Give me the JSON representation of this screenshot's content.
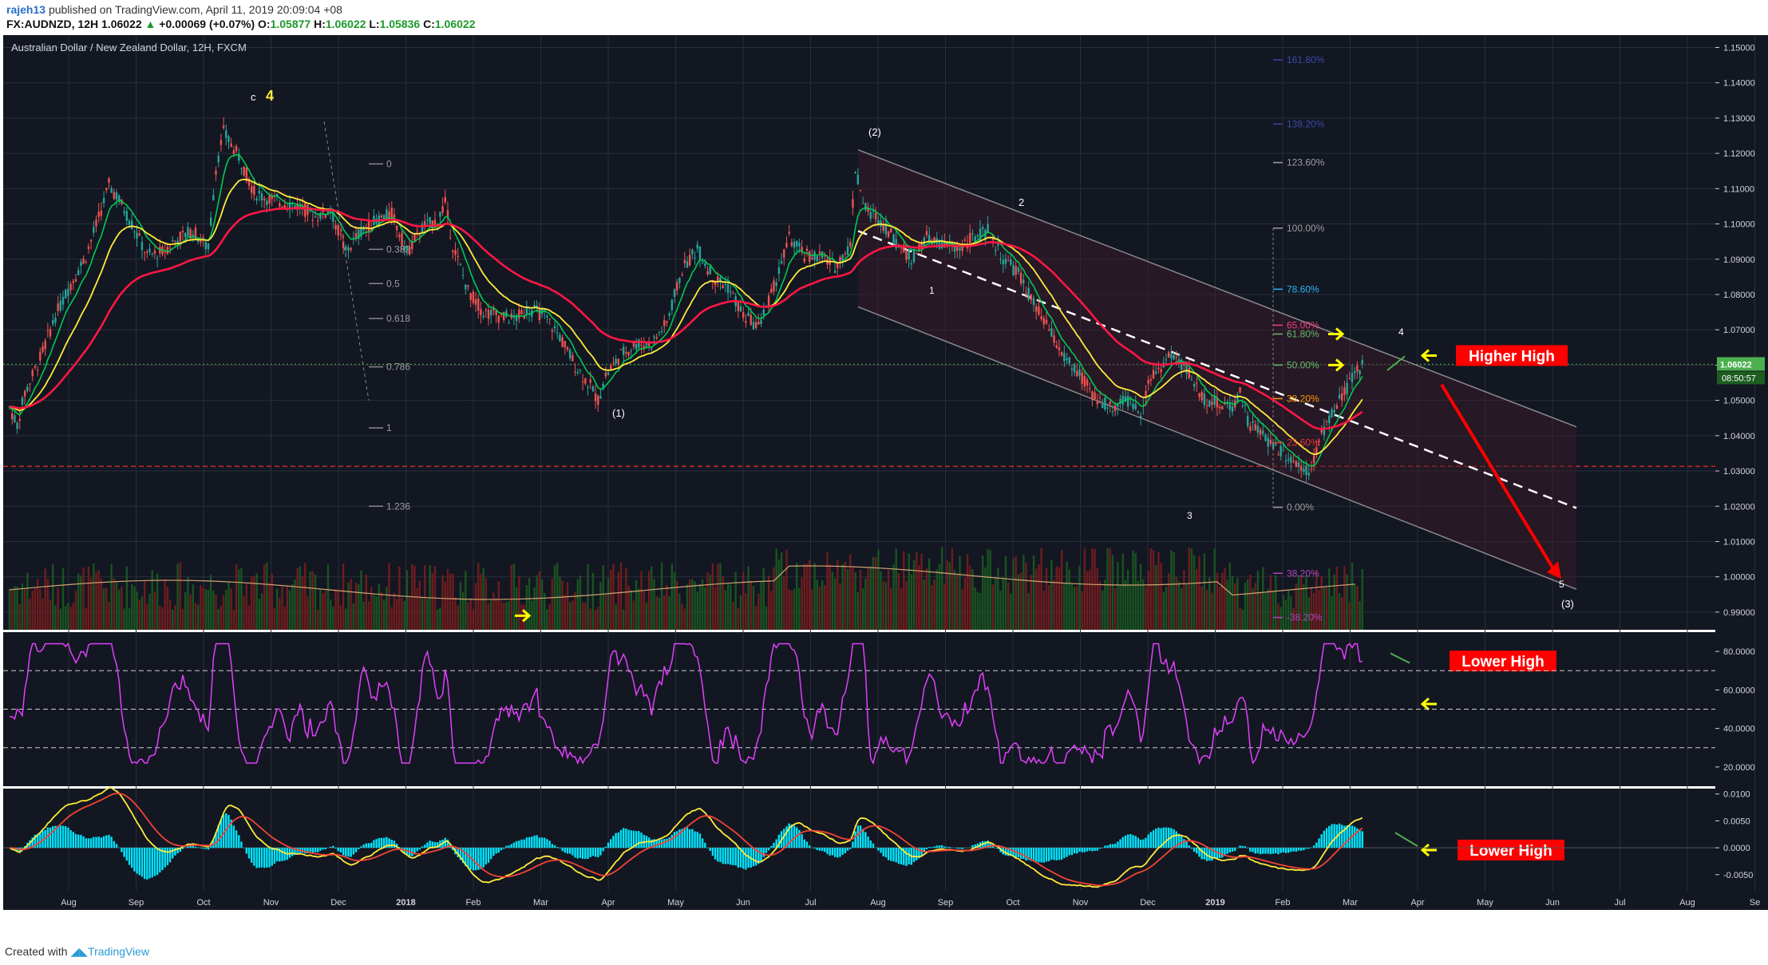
{
  "header": {
    "user": "rajeh13",
    "published": "published on TradingView.com, April 11, 2019 20:09:04 +08",
    "symbol": "FX:AUDNZD, 12H",
    "last": "1.06022",
    "arrow": "▲",
    "change": "+0.00069 (+0.07%)",
    "o_label": "O:",
    "o_value": "1.05877",
    "h_label": "H:",
    "h_value": "1.06022",
    "l_label": "L:",
    "l_value": "1.05836",
    "c_label": "C:",
    "c_value": "1.06022"
  },
  "footer": {
    "created_with": "Created with",
    "brand": "TradingView"
  },
  "colors": {
    "background": "#131722",
    "grid": "#2a2e39",
    "bull": "#26a69a",
    "bear": "#ef5350",
    "ema_fast": "#00c853",
    "ema_mid": "#ffeb3b",
    "ema_slow": "#ff1744",
    "rsi": "#e040fb",
    "macd_hist": "#00e5ff",
    "annotation_red": "#ff0000",
    "arrow_yellow": "#ffff00"
  },
  "chart_data": [
    {
      "type": "line",
      "title": "Australian Dollar / New Zealand Dollar, 12H, FXCM",
      "x_axis": [
        "Aug",
        "Sep",
        "Oct",
        "Nov",
        "Dec",
        "2018",
        "Feb",
        "Mar",
        "Apr",
        "May",
        "Jun",
        "Jul",
        "Aug",
        "Sep",
        "Oct",
        "Nov",
        "Dec",
        "2019",
        "Feb",
        "Mar",
        "Apr",
        "May",
        "Jun",
        "Jul",
        "Aug",
        "Se"
      ],
      "y_axis": [
        "1.15000",
        "1.14000",
        "1.13000",
        "1.12000",
        "1.11000",
        "1.10000",
        "1.09000",
        "1.08000",
        "1.07000",
        "1.06000",
        "1.05000",
        "1.04000",
        "1.03000",
        "1.02000",
        "1.01000",
        "1.00000",
        "0.99000"
      ],
      "ylim": [
        0.985,
        1.1535
      ],
      "price_label": "1.06022",
      "countdown": "08:50:57",
      "price_path": [
        [
          0,
          1.048
        ],
        [
          0.5,
          1.043
        ],
        [
          1,
          1.052
        ],
        [
          2,
          1.062
        ],
        [
          3,
          1.074
        ],
        [
          4,
          1.083
        ],
        [
          5,
          1.091
        ],
        [
          6,
          1.104
        ],
        [
          6.5,
          1.111
        ],
        [
          7,
          1.108
        ],
        [
          8,
          1.1
        ],
        [
          9,
          1.091
        ],
        [
          10,
          1.092
        ],
        [
          11,
          1.096
        ],
        [
          12,
          1.098
        ],
        [
          13,
          1.093
        ],
        [
          13.5,
          1.116
        ],
        [
          14,
          1.126
        ],
        [
          15,
          1.119
        ],
        [
          16,
          1.109
        ],
        [
          17,
          1.107
        ],
        [
          18,
          1.106
        ],
        [
          19,
          1.105
        ],
        [
          20,
          1.102
        ],
        [
          21,
          1.104
        ],
        [
          22,
          1.092
        ],
        [
          23,
          1.098
        ],
        [
          24,
          1.101
        ],
        [
          25,
          1.103
        ],
        [
          26,
          1.092
        ],
        [
          27,
          1.099
        ],
        [
          28,
          1.101
        ],
        [
          28.5,
          1.106
        ],
        [
          29,
          1.094
        ],
        [
          30,
          1.081
        ],
        [
          31,
          1.075
        ],
        [
          32,
          1.074
        ],
        [
          33,
          1.073
        ],
        [
          34,
          1.076
        ],
        [
          35,
          1.074
        ],
        [
          36,
          1.068
        ],
        [
          37,
          1.06
        ],
        [
          38,
          1.054
        ],
        [
          38.5,
          1.05
        ],
        [
          39,
          1.057
        ],
        [
          40,
          1.063
        ],
        [
          41,
          1.066
        ],
        [
          42,
          1.066
        ],
        [
          43,
          1.072
        ],
        [
          44,
          1.087
        ],
        [
          45,
          1.093
        ],
        [
          46,
          1.085
        ],
        [
          47,
          1.082
        ],
        [
          48,
          1.074
        ],
        [
          49,
          1.071
        ],
        [
          50,
          1.082
        ],
        [
          51,
          1.096
        ],
        [
          52,
          1.091
        ],
        [
          53,
          1.091
        ],
        [
          54,
          1.088
        ],
        [
          55,
          1.094
        ],
        [
          55.3,
          1.116
        ],
        [
          56,
          1.104
        ],
        [
          57,
          1.101
        ],
        [
          58,
          1.095
        ],
        [
          59,
          1.09
        ],
        [
          60,
          1.096
        ],
        [
          61,
          1.094
        ],
        [
          62,
          1.093
        ],
        [
          63,
          1.096
        ],
        [
          64,
          1.098
        ],
        [
          65,
          1.09
        ],
        [
          66,
          1.086
        ],
        [
          67,
          1.077
        ],
        [
          68,
          1.07
        ],
        [
          69,
          1.062
        ],
        [
          70,
          1.057
        ],
        [
          71,
          1.051
        ],
        [
          72,
          1.048
        ],
        [
          73,
          1.05
        ],
        [
          74,
          1.047
        ],
        [
          74.5,
          1.055
        ],
        [
          75,
          1.058
        ],
        [
          76,
          1.063
        ],
        [
          77,
          1.059
        ],
        [
          78,
          1.051
        ],
        [
          79,
          1.049
        ],
        [
          80,
          1.048
        ],
        [
          80.5,
          1.053
        ],
        [
          81,
          1.044
        ],
        [
          82,
          1.04
        ],
        [
          83,
          1.036
        ],
        [
          84,
          1.033
        ],
        [
          85,
          1.03
        ],
        [
          86,
          1.042
        ],
        [
          87,
          1.05
        ],
        [
          88,
          1.057
        ],
        [
          88.5,
          1.06
        ]
      ],
      "annotations": {
        "wave_c4_letter": "c",
        "wave_c4_number": "4",
        "wave_2_paren": "(2)",
        "wave_1_paren": "(1)",
        "wave_3_paren": "(3)",
        "w1": "1",
        "w2": "2",
        "w3": "3",
        "w4": "4",
        "w5": "5",
        "higher_high": "Higher High",
        "fib_left": [
          "0",
          "0.382",
          "0.5",
          "0.618",
          "0.786",
          "1",
          "1.236"
        ],
        "fib_right_blue": [
          "161.80%",
          "138.20%",
          "78.60%"
        ],
        "fib_right_gray": [
          "123.60%",
          "100.00%",
          "0.00%"
        ],
        "fib_right_pink": "65.00%",
        "fib_right_green": [
          "61.80%",
          "50.00%"
        ],
        "fib_right_low": [
          "38.20%",
          "23.60%"
        ],
        "fib_right_faded": [
          "38.20%",
          "-38.20%"
        ]
      }
    },
    {
      "type": "line",
      "title": "",
      "y_axis": [
        "80.0000",
        "60.0000",
        "40.0000",
        "20.0000"
      ],
      "ylim": [
        10,
        90
      ],
      "levels": [
        70,
        50,
        30
      ],
      "label": "Lower High"
    },
    {
      "type": "line",
      "title": "",
      "y_axis": [
        "0.0100",
        "0.0050",
        "0.0000",
        "-0.0050"
      ],
      "ylim": [
        -0.008,
        0.011
      ],
      "label": "Lower High"
    }
  ]
}
